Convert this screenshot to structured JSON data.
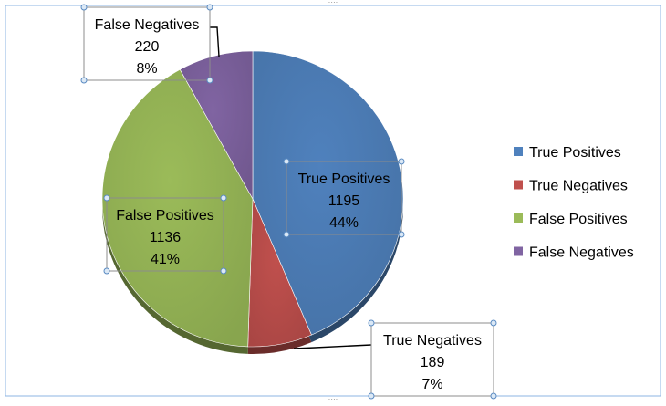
{
  "chart_data": {
    "type": "pie",
    "title": "",
    "slices": [
      {
        "label": "True Positives",
        "value": 1195,
        "percent_label": "44%",
        "color": "#4F81BD"
      },
      {
        "label": "True Negatives",
        "value": 189,
        "percent_label": "7%",
        "color": "#C0504D"
      },
      {
        "label": "False Positives",
        "value": 1136,
        "percent_label": "41%",
        "color": "#9BBB59"
      },
      {
        "label": "False Negatives",
        "value": 220,
        "percent_label": "8%",
        "color": "#8064A2"
      }
    ],
    "legend": {
      "placement": "right",
      "entries": [
        "True Positives",
        "True Negatives",
        "False Positives",
        "False Negatives"
      ]
    }
  }
}
